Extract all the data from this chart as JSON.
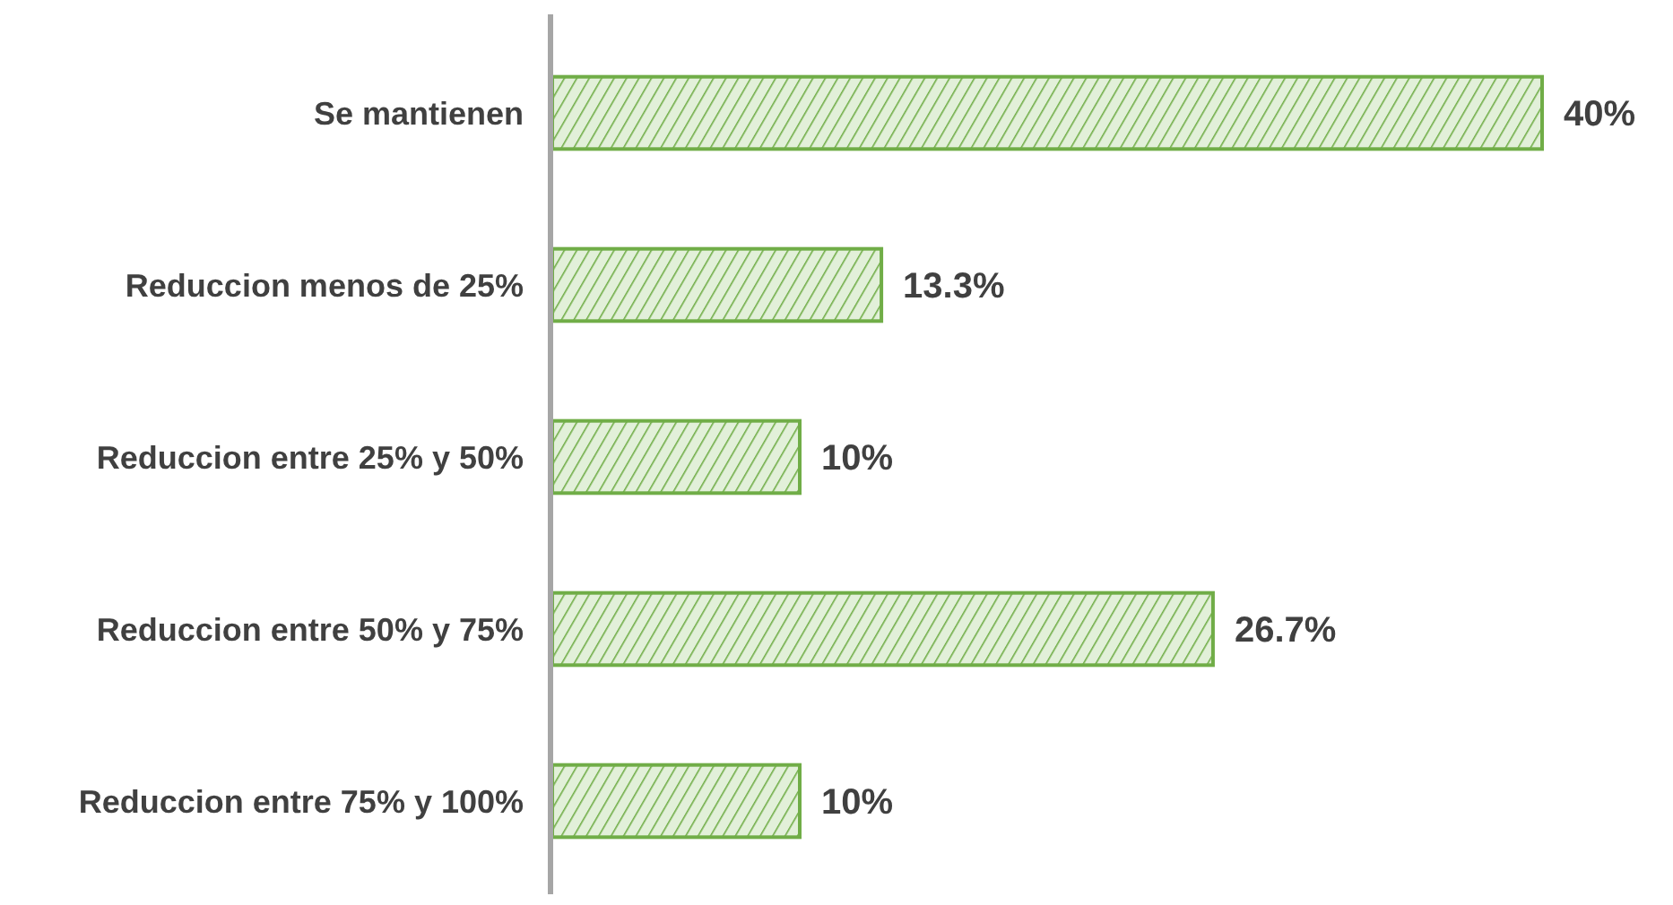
{
  "chart_data": {
    "type": "bar",
    "orientation": "horizontal",
    "categories": [
      "Se mantienen",
      "Reduccion menos de 25%",
      "Reduccion entre 25% y 50%",
      "Reduccion entre 50% y 75%",
      "Reduccion entre 75% y 100%"
    ],
    "values": [
      40,
      13.3,
      10,
      26.7,
      10
    ],
    "value_labels": [
      "40%",
      "13.3%",
      "10%",
      "26.7%",
      "10%"
    ],
    "color": "#70ad47"
  }
}
